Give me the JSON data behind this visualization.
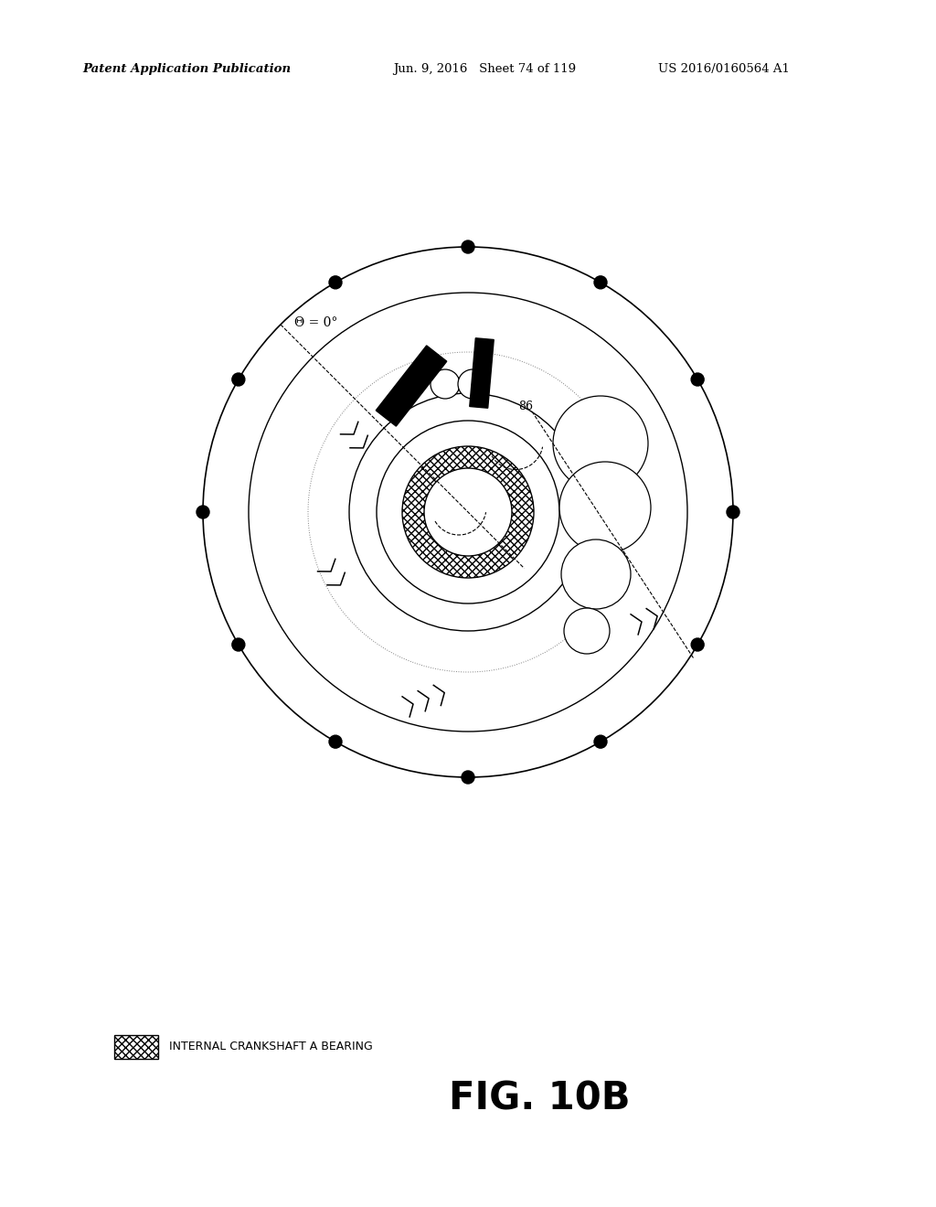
{
  "header_left": "Patent Application Publication",
  "header_mid": "Jun. 9, 2016   Sheet 74 of 119",
  "header_right": "US 2016/0160564 A1",
  "fig_label": "FIG. 10B",
  "legend_text": "INTERNAL CRANKSHAFT A BEARING",
  "label_86": "86",
  "theta_label": "Θ = 0°",
  "bg_color": "#ffffff"
}
